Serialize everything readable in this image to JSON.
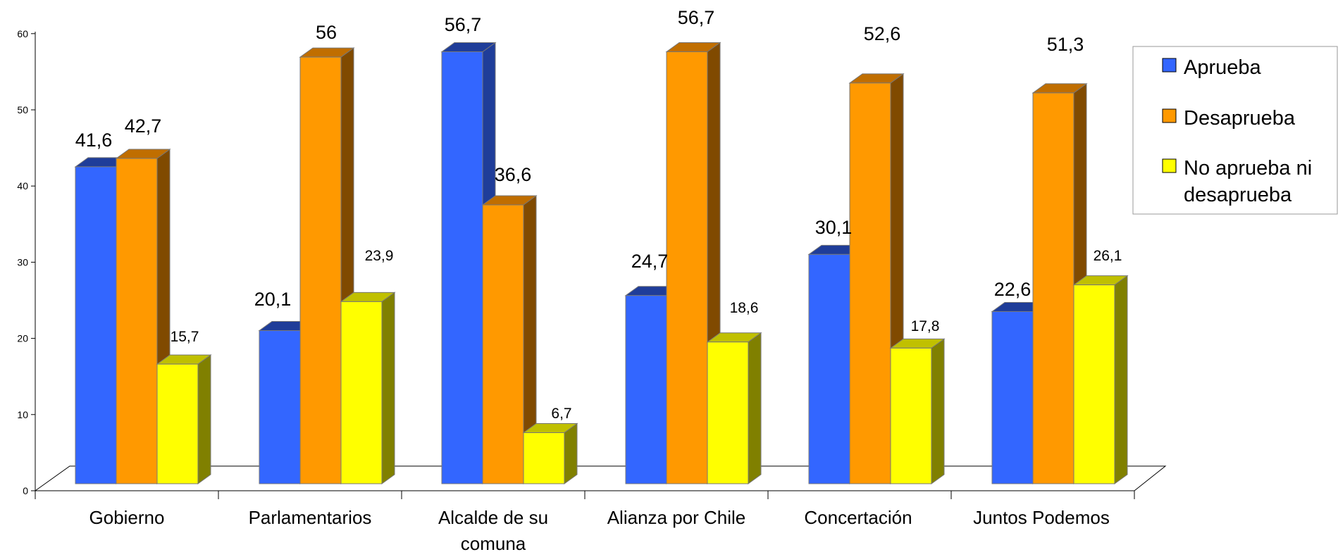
{
  "chart_data": {
    "type": "bar",
    "title": "",
    "xlabel": "",
    "ylabel": "",
    "ylim": [
      0,
      60
    ],
    "yticks": [
      "0",
      "10",
      "20",
      "30",
      "40",
      "50",
      "60"
    ],
    "categories": [
      [
        "Gobierno"
      ],
      [
        "Parlamentarios"
      ],
      [
        "Alcalde de su",
        "comuna"
      ],
      [
        "Alianza por Chile"
      ],
      [
        "Concertación"
      ],
      [
        "Juntos Podemos"
      ]
    ],
    "series": [
      {
        "name": "Aprueba",
        "color": "#3366ff",
        "top_color": "#1f3d99",
        "side_color": "#1f3d99",
        "values": [
          41.6,
          20.1,
          56.7,
          24.7,
          30.1,
          22.6
        ],
        "labels": [
          "41,6",
          "20,1",
          "56,7",
          "24,7",
          "30,1",
          "22,6"
        ]
      },
      {
        "name": "Desaprueba",
        "color": "#ff9900",
        "top_color": "#c06e00",
        "side_color": "#804a00",
        "values": [
          42.7,
          56,
          36.6,
          56.7,
          52.6,
          51.3
        ],
        "labels": [
          "42,7",
          "56",
          "36,6",
          "56,7",
          "52,6",
          "51,3"
        ]
      },
      {
        "name": "No aprueba ni desaprueba",
        "legend_lines": [
          "No aprueba ni",
          "desaprueba"
        ],
        "color": "#ffff00",
        "top_color": "#c0c000",
        "side_color": "#808000",
        "values": [
          15.7,
          23.9,
          6.7,
          18.6,
          17.8,
          26.1
        ],
        "labels": [
          "15,7",
          "23,9",
          "6,7",
          "18,6",
          "17,8",
          "26,1"
        ]
      }
    ],
    "legend_position": "right",
    "grid": false
  }
}
